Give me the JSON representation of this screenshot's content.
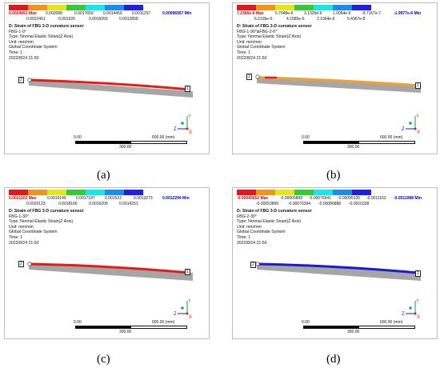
{
  "common": {
    "title": "D: Strain of FBG 3-D curvature sensor",
    "type": "Type: Normal Elastic Strain(Z Axis)",
    "unit": "Unit: mm/mm",
    "coord": "Global Coordinate System",
    "time": "Time: 1",
    "date": "2022/8/24 21:50",
    "scale_0": "0.00",
    "scale_1": "600.00 (mm)",
    "scale_mid": "300.00",
    "node_1": "1",
    "node_2": "2",
    "axis_x": "X",
    "axis_y": "Y",
    "axis_z": "Z"
  },
  "colors": {
    "legend": [
      "#e8151b",
      "#f2941a",
      "#e6e617",
      "#33cc33",
      "#16e8e3",
      "#1a8cf2",
      "#1f1fe8"
    ],
    "red": "#e81b1b",
    "blue": "#1a1ad6",
    "orange": "#e9a23b",
    "beam_gray": "#a6a6a6"
  },
  "panels": [
    {
      "caption": "(a)",
      "fbg": "FBG-1-0°",
      "top_labels": [
        "0.0024061 Max",
        "0.002088",
        "0.0017659",
        "0.0014459",
        "0.0011257",
        "0.00096567 Min"
      ],
      "bot_labels": [
        "0.0022461",
        "0.001926",
        "0.0016059",
        "0.0012858"
      ]
    },
    {
      "caption": "(b)",
      "fbg": "FBG-1-90°&FBG-2-0°",
      "top_labels": [
        "7.2366e-6 Max",
        "5.7048e-6",
        "3.1325e-6",
        "1.0064e-6",
        "-9.7167e-7",
        "-1.9977e-6 Min"
      ],
      "bot_labels": [
        "6.2105e-6",
        "4.1585e-6",
        "2.1064e-6",
        "5.4367e-8"
      ]
    },
    {
      "caption": "(c)",
      "fbg": "FBG-1-30°",
      "top_labels": [
        "0.0021102 Max",
        "0.0019145",
        "0.0017187",
        "0.001523",
        "0.0013273",
        "0.0012294 Min"
      ],
      "bot_labels": [
        "0.0020123",
        "0.0018166",
        "0.0016209",
        "0.0014251"
      ]
    },
    {
      "caption": "(d)",
      "fbg": "FBG-2-30°",
      "top_labels": [
        "-0.00045652 Max",
        "-0.00065899",
        "-0.00076641",
        "-0.00095135",
        "-0.0011163",
        "-0.0011988 Min"
      ],
      "bot_labels": [
        "-0.00053899",
        "-0.00070394",
        "-0.00086888",
        "-0.0010338"
      ]
    }
  ]
}
